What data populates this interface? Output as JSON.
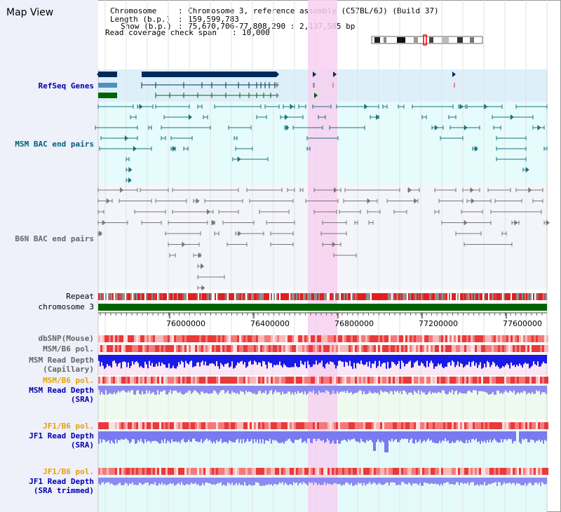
{
  "window": {
    "title": "Map View"
  },
  "info": {
    "chromosome_label": "Chromosome",
    "chromosome_value": "Chromosome 3, reference assembly (C57BL/6J) (Build 37)",
    "length_label": "Length (b.p.)",
    "length_value": "159,599,783",
    "show_label": "Show (b.p.)",
    "show_value": "75,670,706-77,808,290 : 2,137,585 bp",
    "coverage_label": "Read coverage check span",
    "coverage_value": "10,000"
  },
  "tracks": {
    "refseq": "RefSeq Genes",
    "msm_bac": "MSM BAC end pairs",
    "b6n_bac": "B6N BAC end pairs",
    "repeat": "Repeat",
    "chromosome": "chromosome 3",
    "dbsnp": "dbSNP(Mouse)",
    "msm_b6_pol_1": "MSM/B6 pol.",
    "msm_read_depth_cap_1": "MSM Read Depth",
    "msm_read_depth_cap_2": "(Capillary)",
    "msm_b6_pol_2": "MSM/B6 pol.",
    "msm_read_depth_sra_1": "MSM Read Depth",
    "msm_read_depth_sra_2": "(SRA)",
    "jf1_b6_pol_1": "JF1/B6 pol.",
    "jf1_read_depth_1": "JF1 Read Depth",
    "jf1_read_depth_2": "(SRA)",
    "jf1_b6_pol_2": "JF1/B6 pol.",
    "jf1_read_depth_trim_1": "JF1 Read Depth",
    "jf1_read_depth_trim_2": "(SRA trimmed)"
  },
  "axis": {
    "ticks": [
      "76000000",
      "76400000",
      "76800000",
      "77200000",
      "77600000"
    ]
  },
  "colors": {
    "highlight": "#f7d0f0",
    "refseq_bg": "#ddf0fa",
    "msm_bg": "#e6fbfb",
    "b6n_bg": "#f4f5fa",
    "chromosome_bar": "#006400",
    "msm_bar": "#1a1ae6",
    "sra_bar": "#8a8af0",
    "pol_red": "#e83a3a",
    "pol_pink": "#f4b0b0"
  }
}
